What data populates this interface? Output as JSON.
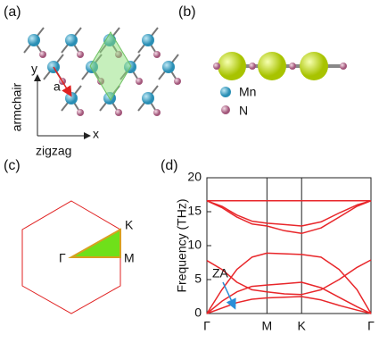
{
  "panels": {
    "a": {
      "label": "(a)",
      "axis_y": "y",
      "axis_x": "x",
      "lattice_constant": "a",
      "armchair": "armchair",
      "zigzag": "zigzag"
    },
    "b": {
      "label": "(b)",
      "legend": [
        "Mn",
        "N"
      ]
    },
    "c": {
      "label": "(c)",
      "points": [
        "Γ",
        "K",
        "M"
      ]
    },
    "d": {
      "label": "(d)"
    }
  },
  "chart_data": {
    "type": "line",
    "ylabel": "Frequency (THz)",
    "annotation": "ZA",
    "x": [
      0,
      0.25,
      0.5,
      0.75,
      1,
      1.29,
      1.577,
      1.9,
      2.2,
      2.5,
      2.732
    ],
    "xlim": [
      0,
      2.732
    ],
    "xticks": [
      {
        "value": 0,
        "label": "Γ"
      },
      {
        "value": 1,
        "label": "M"
      },
      {
        "value": 1.577,
        "label": "K"
      },
      {
        "value": 2.732,
        "label": "Γ"
      }
    ],
    "ylim": [
      0,
      20
    ],
    "yticks": [
      0,
      5,
      10,
      15,
      20
    ],
    "series": [
      {
        "color": "#e8262a",
        "values": [
          16.6,
          16.6,
          16.6,
          16.6,
          16.6,
          16.6,
          16.6,
          16.6,
          16.6,
          16.6,
          16.6
        ]
      },
      {
        "color": "#e8262a",
        "values": [
          16.6,
          15.8,
          14.5,
          13.6,
          13.3,
          13.1,
          12.9,
          13.5,
          14.8,
          16.0,
          16.6
        ]
      },
      {
        "color": "#e8262a",
        "values": [
          16.6,
          15.6,
          14.2,
          13.2,
          12.9,
          12.2,
          11.8,
          12.6,
          14.2,
          15.8,
          16.6
        ]
      },
      {
        "color": "#e8262a",
        "values": [
          0,
          3.5,
          6.5,
          8.3,
          8.9,
          8.8,
          8.7,
          8.3,
          6.5,
          3.5,
          0
        ]
      },
      {
        "color": "#e8262a",
        "values": [
          0,
          1.8,
          3.2,
          4.0,
          4.2,
          4.4,
          4.6,
          3.8,
          2.4,
          1.0,
          0
        ]
      },
      {
        "color": "#e8262a",
        "values": [
          7.8,
          6.5,
          4.6,
          3.5,
          3.2,
          2.9,
          2.8,
          3.5,
          5.0,
          6.8,
          7.9
        ]
      },
      {
        "color": "#e8262a",
        "values": [
          0,
          0.8,
          1.6,
          2.1,
          2.3,
          2.4,
          2.5,
          2.0,
          1.2,
          0.5,
          0
        ]
      }
    ]
  }
}
